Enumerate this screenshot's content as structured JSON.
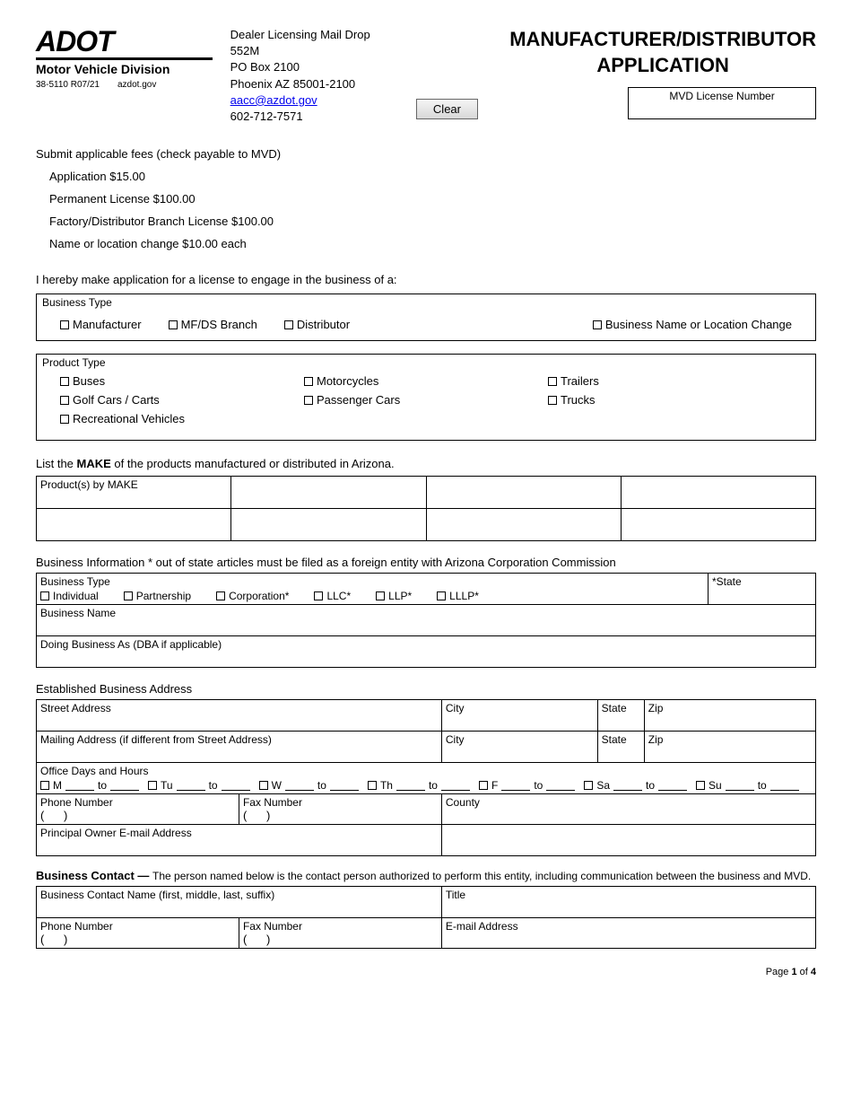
{
  "logo": {
    "brand": "ADOT",
    "division": "Motor Vehicle Division",
    "form_no": "38-5110 R07/21",
    "site": "azdot.gov"
  },
  "address": {
    "line1": "Dealer Licensing Mail Drop 552M",
    "line2": "PO Box 2100",
    "line3": "Phoenix AZ 85001-2100",
    "email": "aacc@azdot.gov",
    "phone": "602-712-7571"
  },
  "title1": "MANUFACTURER/DISTRIBUTOR",
  "title2": "APPLICATION",
  "clear_btn": "Clear",
  "mvd_label": "MVD License Number",
  "fees": {
    "intro": "Submit applicable fees (check payable to MVD)",
    "items": [
      "Application $15.00",
      "Permanent License $100.00",
      "Factory/Distributor Branch License $100.00",
      "Name or location change $10.00 each"
    ]
  },
  "declare": "I hereby make application for a license to engage in the business of a:",
  "business_type": {
    "label": "Business Type",
    "options": [
      "Manufacturer",
      "MF/DS  Branch",
      "Distributor",
      "Business Name or Location Change"
    ]
  },
  "product_type": {
    "label": "Product Type",
    "col1": [
      "Buses",
      "Golf Cars / Carts",
      "Recreational Vehicles"
    ],
    "col2": [
      "Motorcycles",
      "Passenger Cars"
    ],
    "col3": [
      "Trailers",
      "Trucks"
    ]
  },
  "make_intro_a": "List the ",
  "make_intro_b": "MAKE",
  "make_intro_c": " of the products manufactured or distributed in Arizona.",
  "make_header": "Product(s) by MAKE",
  "biz_info_intro": "Business Information * out of state articles must be filed as a foreign entity with Arizona Corporation Commission",
  "biz_info": {
    "type_label": "Business Type",
    "state_label": "*State",
    "types": [
      "Individual",
      "Partnership",
      "Corporation*",
      "LLC*",
      "LLP*",
      "LLLP*"
    ],
    "name_label": "Business Name",
    "dba_label": "Doing Business As (DBA if applicable)"
  },
  "addr_section": {
    "heading": "Established Business Address",
    "street": "Street Address",
    "city": "City",
    "state": "State",
    "zip": "Zip",
    "mailing": "Mailing Address  (if different from Street Address)",
    "hours_label": "Office Days and Hours",
    "days": [
      "M",
      "Tu",
      "W",
      "Th",
      "F",
      "Sa",
      "Su"
    ],
    "to": "to",
    "phone": "Phone Number",
    "fax": "Fax Number",
    "county": "County",
    "owner_email": "Principal Owner E-mail Address"
  },
  "contact": {
    "intro_a": "Business Contact — ",
    "intro_b": "The person named below is the contact person authorized to perform this entity, including communication between the business and MVD.",
    "name": "Business Contact Name (first, middle, last, suffix)",
    "title_lbl": "Title",
    "phone": "Phone Number",
    "fax": "Fax Number",
    "email": "E-mail Address"
  },
  "footer": {
    "page_a": "Page ",
    "page_b": "1",
    "page_c": " of ",
    "page_d": "4"
  }
}
